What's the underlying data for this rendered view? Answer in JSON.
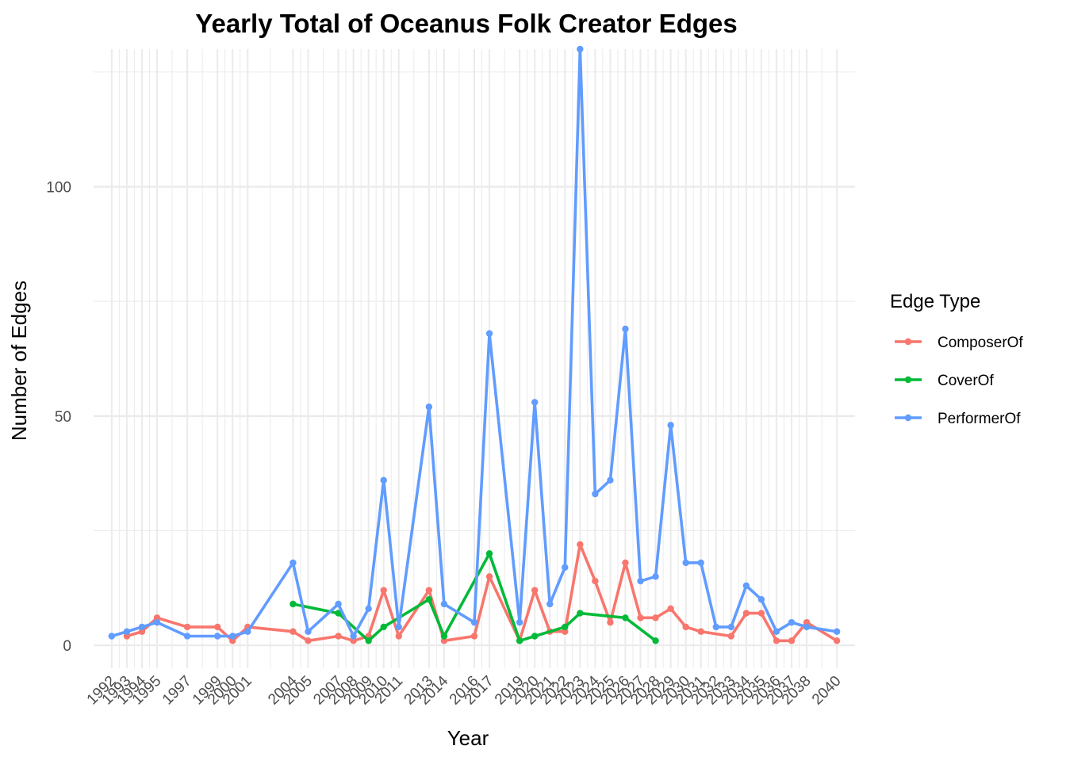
{
  "chart_data": {
    "type": "line",
    "title": "Yearly Total of Oceanus Folk Creator Edges",
    "xlabel": "Year",
    "ylabel": "Number of Edges",
    "ylim": [
      -5,
      130
    ],
    "xlim": [
      1990.8,
      2041.2
    ],
    "y_ticks": [
      0,
      50,
      100
    ],
    "x_tick_labels": [
      1992,
      1993,
      1994,
      1995,
      1997,
      1999,
      2000,
      2001,
      2004,
      2005,
      2007,
      2008,
      2009,
      2010,
      2011,
      2013,
      2014,
      2016,
      2017,
      2019,
      2020,
      2021,
      2022,
      2023,
      2024,
      2025,
      2026,
      2027,
      2028,
      2029,
      2030,
      2031,
      2032,
      2033,
      2034,
      2035,
      2036,
      2037,
      2038,
      2040
    ],
    "grid": true,
    "legend": {
      "title": "Edge Type",
      "position": "right"
    },
    "series": [
      {
        "name": "ComposerOf",
        "color": "#F8766D",
        "points": [
          [
            1993,
            2
          ],
          [
            1994,
            3
          ],
          [
            1995,
            6
          ],
          [
            1997,
            4
          ],
          [
            1999,
            4
          ],
          [
            2000,
            1
          ],
          [
            2001,
            4
          ],
          [
            2004,
            3
          ],
          [
            2005,
            1
          ],
          [
            2007,
            2
          ],
          [
            2008,
            1
          ],
          [
            2009,
            2
          ],
          [
            2010,
            12
          ],
          [
            2011,
            2
          ],
          [
            2013,
            12
          ],
          [
            2014,
            1
          ],
          [
            2016,
            2
          ],
          [
            2017,
            15
          ],
          [
            2019,
            1
          ],
          [
            2020,
            12
          ],
          [
            2021,
            3
          ],
          [
            2022,
            3
          ],
          [
            2023,
            22
          ],
          [
            2024,
            14
          ],
          [
            2025,
            5
          ],
          [
            2026,
            18
          ],
          [
            2027,
            6
          ],
          [
            2028,
            6
          ],
          [
            2029,
            8
          ],
          [
            2030,
            4
          ],
          [
            2031,
            3
          ],
          [
            2033,
            2
          ],
          [
            2034,
            7
          ],
          [
            2035,
            7
          ],
          [
            2036,
            1
          ],
          [
            2037,
            1
          ],
          [
            2038,
            5
          ],
          [
            2040,
            1
          ]
        ]
      },
      {
        "name": "CoverOf",
        "color": "#00BA38",
        "points": [
          [
            2004,
            9
          ],
          [
            2007,
            7
          ],
          [
            2009,
            1
          ],
          [
            2010,
            4
          ],
          [
            2013,
            10
          ],
          [
            2014,
            2
          ],
          [
            2017,
            20
          ],
          [
            2019,
            1
          ],
          [
            2020,
            2
          ],
          [
            2022,
            4
          ],
          [
            2023,
            7
          ],
          [
            2026,
            6
          ],
          [
            2028,
            1
          ]
        ]
      },
      {
        "name": "PerformerOf",
        "color": "#619CFF",
        "points": [
          [
            1992,
            2
          ],
          [
            1993,
            3
          ],
          [
            1994,
            4
          ],
          [
            1995,
            5
          ],
          [
            1997,
            2
          ],
          [
            1999,
            2
          ],
          [
            2000,
            2
          ],
          [
            2001,
            3
          ],
          [
            2004,
            18
          ],
          [
            2005,
            3
          ],
          [
            2007,
            9
          ],
          [
            2008,
            2
          ],
          [
            2009,
            8
          ],
          [
            2010,
            36
          ],
          [
            2011,
            4
          ],
          [
            2013,
            52
          ],
          [
            2014,
            9
          ],
          [
            2016,
            5
          ],
          [
            2017,
            68
          ],
          [
            2019,
            5
          ],
          [
            2020,
            53
          ],
          [
            2021,
            9
          ],
          [
            2022,
            17
          ],
          [
            2023,
            130
          ],
          [
            2024,
            33
          ],
          [
            2025,
            36
          ],
          [
            2026,
            69
          ],
          [
            2027,
            14
          ],
          [
            2028,
            15
          ],
          [
            2029,
            48
          ],
          [
            2030,
            18
          ],
          [
            2031,
            18
          ],
          [
            2032,
            4
          ],
          [
            2033,
            4
          ],
          [
            2034,
            13
          ],
          [
            2035,
            10
          ],
          [
            2036,
            3
          ],
          [
            2037,
            5
          ],
          [
            2038,
            4
          ],
          [
            2040,
            3
          ]
        ]
      }
    ]
  }
}
